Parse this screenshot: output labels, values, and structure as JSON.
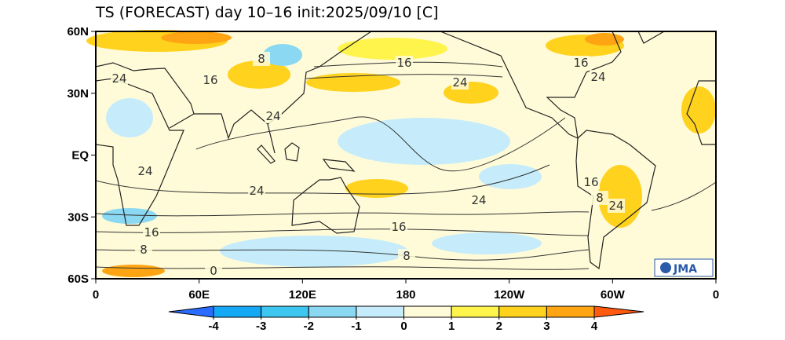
{
  "title": "TS (FORECAST) day 10–16 init:2025/09/10  [C]",
  "latitude_labels": [
    "60N",
    "30N",
    "EQ",
    "30S",
    "60S"
  ],
  "longitude_labels": [
    "0",
    "60E",
    "120E",
    "180",
    "120W",
    "60W",
    "0"
  ],
  "contour_labels": [
    "24",
    "16",
    "8",
    "16",
    "24",
    "16",
    "24",
    "24",
    "24",
    "24",
    "24",
    "16",
    "8",
    "24",
    "16",
    "8",
    "16",
    "8",
    "0"
  ],
  "colorbar": {
    "ticks": [
      -4,
      -3,
      -2,
      -1,
      0,
      1,
      2,
      3,
      4
    ],
    "colors": [
      "#2a6cff",
      "#14a8f5",
      "#3cc6f0",
      "#8ad8f2",
      "#c6ecfb",
      "#fffbd8",
      "#fff44c",
      "#ffd21e",
      "#ffa514",
      "#ff5a10"
    ]
  },
  "logo": "JMA"
}
